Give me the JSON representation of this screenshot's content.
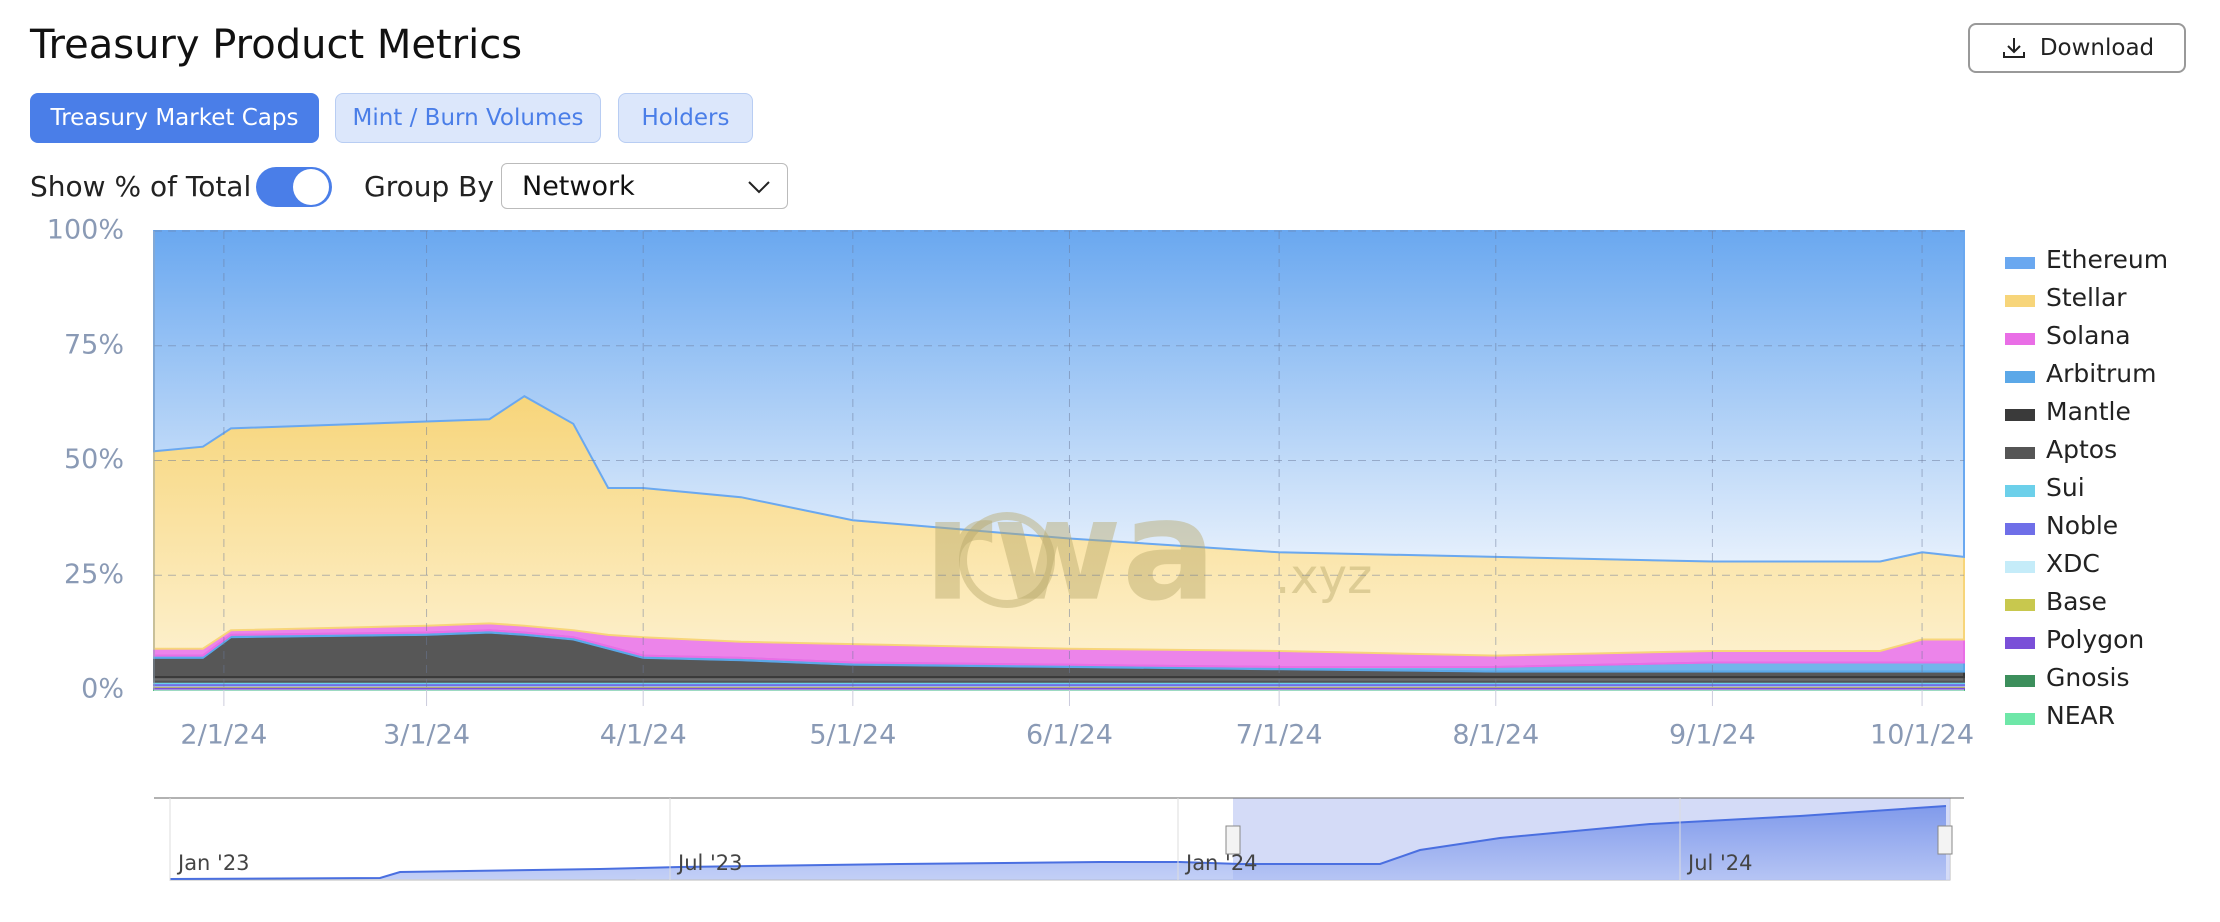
{
  "header": {
    "title": "Treasury Product Metrics",
    "download": "Download"
  },
  "tabs": [
    "Treasury Market Caps",
    "Mint / Burn Volumes",
    "Holders"
  ],
  "controls": {
    "toggle_label": "Show % of Total",
    "group_label": "Group By",
    "group_value": "Network"
  },
  "chart_data": {
    "type": "area",
    "stacked": true,
    "grid": true,
    "legend": "right",
    "watermark": {
      "main": "rwa",
      "suffix": ".xyz"
    },
    "x": [
      "2024-01-22",
      "2024-01-29",
      "2024-02-02",
      "2024-03-01",
      "2024-03-10",
      "2024-03-15",
      "2024-03-22",
      "2024-03-27",
      "2024-04-01",
      "2024-04-15",
      "2024-05-01",
      "2024-06-01",
      "2024-07-01",
      "2024-08-01",
      "2024-09-01",
      "2024-09-25",
      "2024-10-01",
      "2024-10-07"
    ],
    "xlim": [
      "2024-01-22",
      "2024-10-07"
    ],
    "xticks": [
      {
        "value": "2024-02-01",
        "label": "2/1/24"
      },
      {
        "value": "2024-03-01",
        "label": "3/1/24"
      },
      {
        "value": "2024-04-01",
        "label": "4/1/24"
      },
      {
        "value": "2024-05-01",
        "label": "5/1/24"
      },
      {
        "value": "2024-06-01",
        "label": "6/1/24"
      },
      {
        "value": "2024-07-01",
        "label": "7/1/24"
      },
      {
        "value": "2024-08-01",
        "label": "8/1/24"
      },
      {
        "value": "2024-09-01",
        "label": "9/1/24"
      },
      {
        "value": "2024-10-01",
        "label": "10/1/24"
      }
    ],
    "ylim": [
      0,
      100
    ],
    "yticks": [
      {
        "value": 0,
        "label": "0%"
      },
      {
        "value": 25,
        "label": "25%"
      },
      {
        "value": 50,
        "label": "50%"
      },
      {
        "value": 75,
        "label": "75%"
      },
      {
        "value": 100,
        "label": "100%"
      }
    ],
    "series": [
      {
        "name": "Ethereum",
        "color": "#6aa8f0",
        "values": [
          48,
          47,
          43,
          41.5,
          41,
          36,
          42,
          56,
          56,
          58,
          63,
          67,
          70,
          71,
          72,
          72,
          70,
          71
        ]
      },
      {
        "name": "Stellar",
        "color": "#f7d57a",
        "values": [
          43,
          44,
          44,
          44.5,
          44.5,
          50,
          45,
          32,
          32.5,
          31.5,
          27,
          24,
          21.5,
          21.5,
          19.5,
          19.5,
          19,
          18
        ]
      },
      {
        "name": "Solana",
        "color": "#e96ee6",
        "values": [
          1.5,
          1.5,
          1,
          1.5,
          1.5,
          1.5,
          1.5,
          2.5,
          4,
          3.5,
          4,
          3.5,
          3.5,
          2.5,
          2.5,
          2.5,
          5,
          5
        ]
      },
      {
        "name": "Arbitrum",
        "color": "#5ba8e8",
        "values": [
          0.5,
          0.5,
          0.5,
          0.5,
          0.5,
          0.5,
          0.5,
          0.5,
          0.5,
          0.5,
          0.5,
          0.5,
          0.5,
          1,
          2,
          2,
          2,
          2
        ]
      },
      {
        "name": "Mantle",
        "color": "#3a3a3a",
        "values": [
          4.2,
          4.2,
          8.7,
          9.2,
          9.7,
          9.2,
          8.2,
          6.2,
          4.2,
          3.7,
          2.7,
          2.2,
          1.7,
          1.2,
          1.2,
          1.2,
          1.2,
          1.2
        ]
      },
      {
        "name": "Aptos",
        "color": "#555555",
        "values": [
          1,
          1,
          1,
          1,
          1,
          1,
          1,
          1,
          1,
          1,
          1,
          1,
          1,
          1,
          1,
          1,
          1,
          1
        ]
      },
      {
        "name": "Sui",
        "color": "#6cd0ea",
        "values": [
          0.3,
          0.3,
          0.3,
          0.3,
          0.3,
          0.3,
          0.3,
          0.3,
          0.3,
          0.3,
          0.3,
          0.3,
          0.3,
          0.3,
          0.3,
          0.3,
          0.3,
          0.3
        ]
      },
      {
        "name": "Noble",
        "color": "#6f6fe8",
        "values": [
          0.5,
          0.5,
          0.5,
          0.5,
          0.5,
          0.5,
          0.5,
          0.5,
          0.5,
          0.5,
          0.5,
          0.5,
          0.5,
          0.5,
          0.5,
          0.5,
          0.5,
          0.5
        ]
      },
      {
        "name": "XDC",
        "color": "#c5ecf9",
        "values": [
          0.1,
          0.1,
          0.1,
          0.1,
          0.1,
          0.1,
          0.1,
          0.1,
          0.1,
          0.1,
          0.1,
          0.1,
          0.1,
          0.1,
          0.1,
          0.1,
          0.1,
          0.1
        ]
      },
      {
        "name": "Base",
        "color": "#c8c84e",
        "values": [
          0.2,
          0.2,
          0.2,
          0.2,
          0.2,
          0.2,
          0.2,
          0.2,
          0.2,
          0.2,
          0.2,
          0.2,
          0.2,
          0.2,
          0.2,
          0.2,
          0.2,
          0.2
        ]
      },
      {
        "name": "Polygon",
        "color": "#7a4fd8",
        "values": [
          0.4,
          0.4,
          0.4,
          0.4,
          0.4,
          0.4,
          0.4,
          0.4,
          0.4,
          0.4,
          0.4,
          0.4,
          0.4,
          0.4,
          0.4,
          0.4,
          0.4,
          0.4
        ]
      },
      {
        "name": "Gnosis",
        "color": "#3c8f5c",
        "values": [
          0.2,
          0.2,
          0.2,
          0.2,
          0.2,
          0.2,
          0.2,
          0.2,
          0.2,
          0.2,
          0.2,
          0.2,
          0.2,
          0.2,
          0.2,
          0.2,
          0.2,
          0.2
        ]
      },
      {
        "name": "NEAR",
        "color": "#6ee7a8",
        "values": [
          0.1,
          0.1,
          0.1,
          0.1,
          0.1,
          0.1,
          0.1,
          0.1,
          0.1,
          0.1,
          0.1,
          0.1,
          0.1,
          0.1,
          0.1,
          0.1,
          0.1,
          0.1
        ]
      }
    ]
  },
  "navigator": {
    "labels": [
      "Jan '23",
      "Jul '23",
      "Jan '24",
      "Jul '24"
    ]
  }
}
